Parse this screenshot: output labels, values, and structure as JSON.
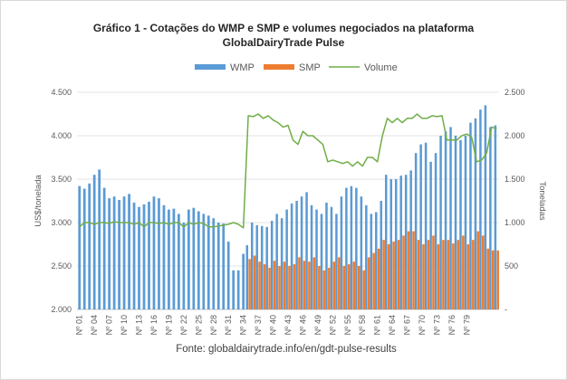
{
  "chart_data": {
    "type": "bar",
    "title_line1": "Gráfico  1 - Cotações do WMP e SMP e volumes negociados na plataforma",
    "title_line2": "GlobalDairyTrade  Pulse",
    "ylabel": "US$/tonelada",
    "y2label": "Toneladas",
    "ylim": [
      2000,
      4500
    ],
    "y2lim": [
      0,
      2500
    ],
    "yticks": [
      "2.000",
      "2.500",
      "3.000",
      "3.500",
      "4.000",
      "4.500"
    ],
    "y2ticks": [
      "-",
      "500",
      "1.000",
      "1.500",
      "2.000",
      "2.500"
    ],
    "legend": {
      "wmp": "WMP",
      "smp": "SMP",
      "volume": "Volume"
    },
    "colors": {
      "wmp": "#5b9bd5",
      "smp": "#ed7d31",
      "volume": "#70ad47"
    },
    "footer": "Fonte: globaldairytrade.info/en/gdt-pulse-results",
    "x_labels": [
      "Nº 01",
      "Nº 04",
      "Nº 07",
      "Nº 10",
      "Nº 13",
      "Nº 16",
      "Nº 19",
      "Nº 22",
      "Nº 25",
      "Nº 28",
      "Nº 31",
      "Nº 34",
      "Nº 37",
      "Nº 40",
      "Nº 43",
      "Nº 46",
      "Nº 49",
      "Nº 52",
      "Nº 55",
      "Nº 58",
      "Nº 61",
      "Nº 64",
      "Nº 67",
      "Nº 70",
      "Nº 73",
      "Nº 76",
      "Nº 79"
    ],
    "label_every": 3,
    "series": [
      {
        "name": "WMP",
        "values": [
          3420,
          3390,
          3450,
          3550,
          3610,
          3400,
          3280,
          3300,
          3260,
          3300,
          3330,
          3230,
          3180,
          3210,
          3240,
          3300,
          3280,
          3200,
          3150,
          3160,
          3100,
          3000,
          3150,
          3170,
          3130,
          3100,
          3080,
          3050,
          3000,
          2990,
          2780,
          2450,
          2450,
          2640,
          2740,
          3000,
          2970,
          2960,
          2950,
          3020,
          3100,
          3050,
          3150,
          3220,
          3250,
          3300,
          3350,
          3200,
          3150,
          3100,
          3230,
          3180,
          3100,
          3300,
          3400,
          3420,
          3400,
          3300,
          3200,
          3100,
          3120,
          3250,
          3550,
          3500,
          3500,
          3540,
          3550,
          3600,
          3800,
          3900,
          3920,
          3700,
          3800,
          4000,
          4050,
          4100,
          4000,
          3950,
          4000,
          4150,
          4200,
          4300,
          4350,
          4100,
          4120
        ]
      },
      {
        "name": "SMP",
        "values": [
          null,
          null,
          null,
          null,
          null,
          null,
          null,
          null,
          null,
          null,
          null,
          null,
          null,
          null,
          null,
          null,
          null,
          null,
          null,
          null,
          null,
          null,
          null,
          null,
          null,
          null,
          null,
          null,
          null,
          null,
          null,
          null,
          null,
          null,
          2580,
          2620,
          2550,
          2520,
          2480,
          2560,
          2500,
          2550,
          2500,
          2520,
          2600,
          2560,
          2550,
          2600,
          2500,
          2450,
          2480,
          2550,
          2600,
          2500,
          2520,
          2550,
          2500,
          2450,
          2600,
          2650,
          2700,
          2800,
          2750,
          2780,
          2800,
          2850,
          2900,
          2900,
          2800,
          2750,
          2800,
          2850,
          2750,
          2800,
          2800,
          2760,
          2800,
          2850,
          2750,
          2800,
          2900,
          2850,
          2700,
          2680,
          2680
        ]
      },
      {
        "name": "Volume",
        "values": [
          950,
          1000,
          1000,
          980,
          1000,
          1000,
          990,
          1010,
          1000,
          1000,
          1000,
          980,
          1000,
          950,
          1000,
          1000,
          990,
          1000,
          980,
          1000,
          1000,
          950,
          1000,
          980,
          1000,
          990,
          950,
          950,
          960,
          970,
          980,
          1000,
          980,
          940,
          2230,
          2220,
          2250,
          2200,
          2230,
          2180,
          2150,
          2100,
          2120,
          1950,
          1900,
          2050,
          2000,
          2000,
          1950,
          1900,
          1700,
          1720,
          1700,
          1680,
          1700,
          1650,
          1700,
          1650,
          1750,
          1750,
          1700,
          2000,
          2200,
          2150,
          2200,
          2150,
          2200,
          2200,
          2250,
          2200,
          2200,
          2230,
          2220,
          2230,
          1950,
          1950,
          1950,
          2000,
          2020,
          1980,
          1700,
          1720,
          1800,
          2100,
          2080
        ]
      }
    ]
  }
}
